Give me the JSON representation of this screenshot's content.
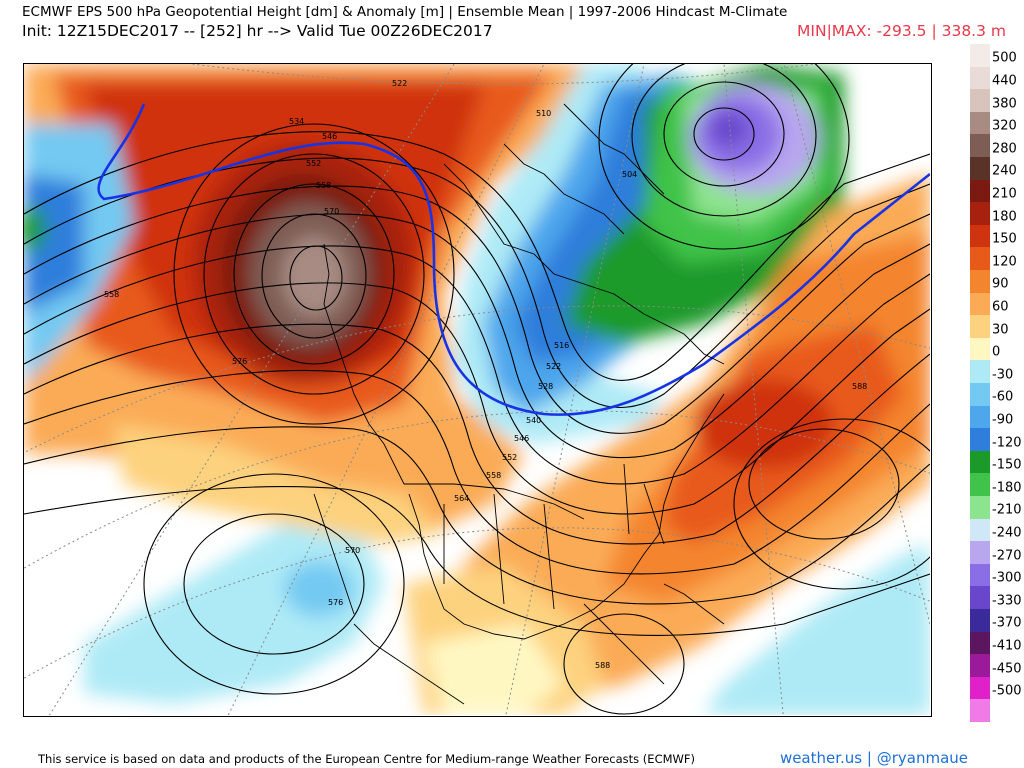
{
  "header": {
    "title": "ECMWF EPS 500 hPa Geopotential Height [dm] & Anomaly [m] | Ensemble Mean | 1997-2006 Hindcast M-Climate",
    "init_line": "Init: 12Z15DEC2017 -- [252] hr --> Valid Tue 00Z26DEC2017",
    "minmax": "MIN|MAX: -293.5 | 338.3 m",
    "minmax_color": "#e8384a"
  },
  "colorbar": {
    "levels": [
      {
        "label": "500",
        "color": "#f3ebe8"
      },
      {
        "label": "440",
        "color": "#e9dcd8"
      },
      {
        "label": "380",
        "color": "#d8c4bd"
      },
      {
        "label": "320",
        "color": "#a88c83"
      },
      {
        "label": "280",
        "color": "#7e5d54"
      },
      {
        "label": "240",
        "color": "#5a3328"
      },
      {
        "label": "210",
        "color": "#7a1a10"
      },
      {
        "label": "180",
        "color": "#a8200e"
      },
      {
        "label": "150",
        "color": "#cf3310"
      },
      {
        "label": "120",
        "color": "#e85a1a"
      },
      {
        "label": "90",
        "color": "#f4852f"
      },
      {
        "label": "60",
        "color": "#fbab56"
      },
      {
        "label": "30",
        "color": "#fdd27e"
      },
      {
        "label": "0",
        "color": "#fff7c2"
      },
      {
        "label": "-30",
        "color": "#aeeaf6"
      },
      {
        "label": "-60",
        "color": "#73c9f2"
      },
      {
        "label": "-90",
        "color": "#4ea6ec"
      },
      {
        "label": "-120",
        "color": "#2f7edb"
      },
      {
        "label": "-150",
        "color": "#1b9a2a"
      },
      {
        "label": "-180",
        "color": "#3fc34a"
      },
      {
        "label": "-210",
        "color": "#8de48e"
      },
      {
        "label": "-240",
        "color": "#cfe7f7"
      },
      {
        "label": "-270",
        "color": "#b8a6ef"
      },
      {
        "label": "-300",
        "color": "#8a6ee6"
      },
      {
        "label": "-330",
        "color": "#6946cc"
      },
      {
        "label": "-370",
        "color": "#3a2a9a"
      },
      {
        "label": "-410",
        "color": "#5c1660"
      },
      {
        "label": "-450",
        "color": "#9a1a9a"
      },
      {
        "label": "-500",
        "color": "#e020c8"
      },
      {
        "label": "",
        "color": "#f07ae6"
      }
    ]
  },
  "map": {
    "contour_labels": [
      "522",
      "510",
      "534",
      "546",
      "552",
      "558",
      "558",
      "570",
      "576",
      "504",
      "516",
      "522",
      "528",
      "540",
      "546",
      "552",
      "558",
      "564",
      "570",
      "576",
      "588",
      "588"
    ]
  },
  "footer": {
    "text": "This service is based on data and products of the European Centre for Medium-range Weather Forecasts (ECMWF)",
    "brand": "weather.us | @ryanmaue",
    "brand_color": "#1e6fd8"
  }
}
